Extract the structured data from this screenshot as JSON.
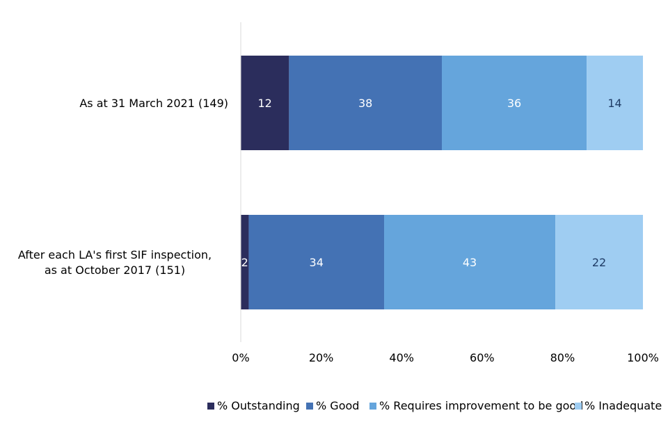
{
  "chart_data": {
    "type": "bar",
    "orientation": "horizontal",
    "stacked": true,
    "categories": [
      "As at 31 March 2021 (149)",
      [
        "After each LA's first SIF inspection,",
        "as at October 2017 (151)"
      ]
    ],
    "series": [
      {
        "name": "% Outstanding",
        "color": "#2b2d5c",
        "label_color": "#ffffff",
        "values": [
          12,
          2
        ]
      },
      {
        "name": "% Good",
        "color": "#4472b4",
        "label_color": "#ffffff",
        "values": [
          38,
          34
        ]
      },
      {
        "name": "% Requires improvement to be good",
        "color": "#65a5dc",
        "label_color": "#ffffff",
        "values": [
          36,
          43
        ]
      },
      {
        "name": "% Inadequate",
        "color": "#9fcdf2",
        "label_color": "#1f3c66",
        "values": [
          14,
          22
        ]
      }
    ],
    "xlim": [
      0,
      100
    ],
    "xticks": [
      "0%",
      "20%",
      "40%",
      "60%",
      "80%",
      "100%"
    ],
    "xlabel": "",
    "ylabel": "",
    "title": "",
    "grid": false,
    "legend": "bottom"
  }
}
